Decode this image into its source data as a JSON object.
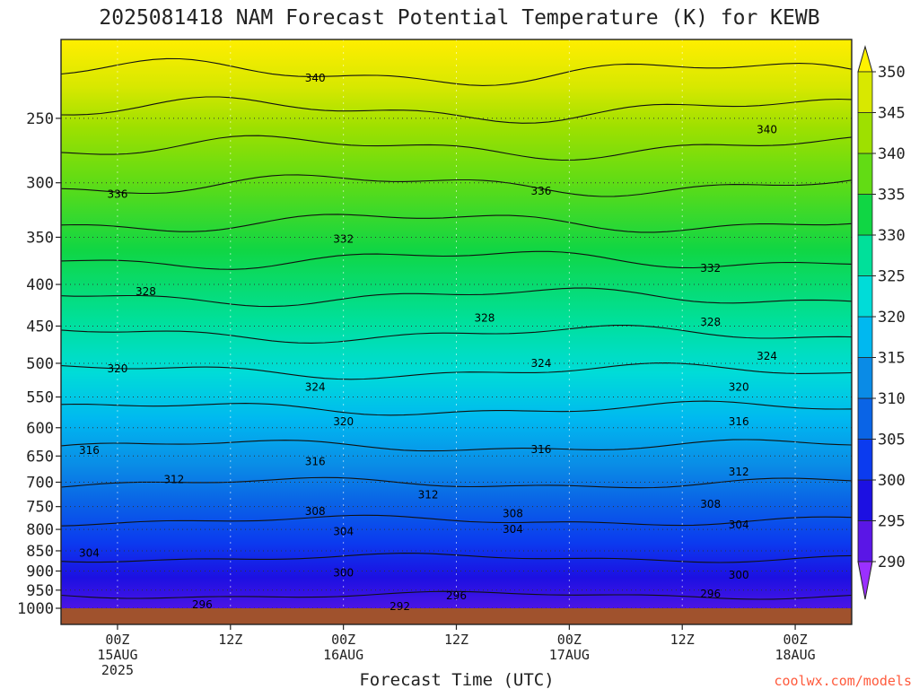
{
  "chart_data": {
    "type": "heatmap",
    "title": "2025081418 NAM Forecast Potential Temperature (K) for KEWB",
    "xlabel": "Forecast Time (UTC)",
    "ylabel": "",
    "variable": "Potential Temperature (K)",
    "y_scale": "log-pressure (hPa), inverted",
    "yticks": [
      250,
      300,
      350,
      400,
      450,
      500,
      550,
      600,
      650,
      700,
      750,
      800,
      850,
      900,
      950,
      1000
    ],
    "ytick_labels": [
      "250",
      "300",
      "350",
      "400",
      "450",
      "500",
      "550",
      "600",
      "650",
      "700",
      "750",
      "800",
      "850",
      "900",
      "950",
      "1000"
    ],
    "ylim": [
      1000,
      200
    ],
    "xlim": [
      "2025-08-14T18Z",
      "2025-08-18T06Z"
    ],
    "xticks": [
      {
        "time": "2025-08-15T00Z",
        "lines": [
          "00Z",
          "15AUG",
          "2025"
        ]
      },
      {
        "time": "2025-08-15T12Z",
        "lines": [
          "12Z"
        ]
      },
      {
        "time": "2025-08-16T00Z",
        "lines": [
          "00Z",
          "16AUG"
        ]
      },
      {
        "time": "2025-08-16T12Z",
        "lines": [
          "12Z"
        ]
      },
      {
        "time": "2025-08-17T00Z",
        "lines": [
          "00Z",
          "17AUG"
        ]
      },
      {
        "time": "2025-08-17T12Z",
        "lines": [
          "12Z"
        ]
      },
      {
        "time": "2025-08-18T00Z",
        "lines": [
          "00Z",
          "18AUG"
        ]
      }
    ],
    "grid": true,
    "colorbar": {
      "levels": [
        290,
        295,
        300,
        305,
        310,
        315,
        320,
        325,
        330,
        335,
        340,
        345,
        350
      ],
      "labels": [
        "290",
        "295",
        "300",
        "305",
        "310",
        "315",
        "320",
        "325",
        "330",
        "335",
        "340",
        "345",
        "350"
      ],
      "colors": [
        "#9b30ff",
        "#5a16e6",
        "#1c10e2",
        "#0b3bef",
        "#0a64e6",
        "#0a8be6",
        "#00b8f0",
        "#00dcd8",
        "#00e09a",
        "#10d644",
        "#62dc14",
        "#9ee000",
        "#d8e800",
        "#fff200"
      ]
    },
    "contour_levels": [
      292,
      296,
      300,
      304,
      308,
      312,
      316,
      320,
      324,
      328,
      332,
      336,
      340,
      344,
      348
    ],
    "contour_labels": [
      {
        "text": "292",
        "time": "2025-08-16T06Z",
        "p": 995
      },
      {
        "text": "296",
        "time": "2025-08-15T09Z",
        "p": 990
      },
      {
        "text": "296",
        "time": "2025-08-16T12Z",
        "p": 965
      },
      {
        "text": "296",
        "time": "2025-08-17T15Z",
        "p": 960
      },
      {
        "text": "300",
        "time": "2025-08-16T00Z",
        "p": 905
      },
      {
        "text": "300",
        "time": "2025-08-17T18Z",
        "p": 910
      },
      {
        "text": "304",
        "time": "2025-08-14T21Z",
        "p": 855
      },
      {
        "text": "304",
        "time": "2025-08-16T00Z",
        "p": 805
      },
      {
        "text": "304",
        "time": "2025-08-16T18Z",
        "p": 800
      },
      {
        "text": "304",
        "time": "2025-08-17T18Z",
        "p": 790
      },
      {
        "text": "308",
        "time": "2025-08-15T21Z",
        "p": 760
      },
      {
        "text": "308",
        "time": "2025-08-16T18Z",
        "p": 765
      },
      {
        "text": "308",
        "time": "2025-08-17T15Z",
        "p": 745
      },
      {
        "text": "312",
        "time": "2025-08-15T06Z",
        "p": 695
      },
      {
        "text": "312",
        "time": "2025-08-16T09Z",
        "p": 725
      },
      {
        "text": "312",
        "time": "2025-08-17T18Z",
        "p": 680
      },
      {
        "text": "316",
        "time": "2025-08-14T21Z",
        "p": 640
      },
      {
        "text": "316",
        "time": "2025-08-15T21Z",
        "p": 660
      },
      {
        "text": "316",
        "time": "2025-08-16T21Z",
        "p": 638
      },
      {
        "text": "316",
        "time": "2025-08-17T18Z",
        "p": 590
      },
      {
        "text": "320",
        "time": "2025-08-15T00Z",
        "p": 508
      },
      {
        "text": "320",
        "time": "2025-08-16T00Z",
        "p": 590
      },
      {
        "text": "320",
        "time": "2025-08-17T18Z",
        "p": 535
      },
      {
        "text": "324",
        "time": "2025-08-15T21Z",
        "p": 535
      },
      {
        "text": "324",
        "time": "2025-08-16T21Z",
        "p": 500
      },
      {
        "text": "324",
        "time": "2025-08-17T21Z",
        "p": 490
      },
      {
        "text": "328",
        "time": "2025-08-15T03Z",
        "p": 408
      },
      {
        "text": "328",
        "time": "2025-08-16T15Z",
        "p": 440
      },
      {
        "text": "328",
        "time": "2025-08-17T15Z",
        "p": 445
      },
      {
        "text": "332",
        "time": "2025-08-16T00Z",
        "p": 352
      },
      {
        "text": "332",
        "time": "2025-08-17T15Z",
        "p": 382
      },
      {
        "text": "336",
        "time": "2025-08-15T00Z",
        "p": 310
      },
      {
        "text": "336",
        "time": "2025-08-16T21Z",
        "p": 307
      },
      {
        "text": "340",
        "time": "2025-08-15T21Z",
        "p": 223
      },
      {
        "text": "340",
        "time": "2025-08-17T21Z",
        "p": 258
      }
    ],
    "ground_color": "#a0522d"
  },
  "credit": "coolwx.com/models",
  "credit_color": "#ff5a3c"
}
